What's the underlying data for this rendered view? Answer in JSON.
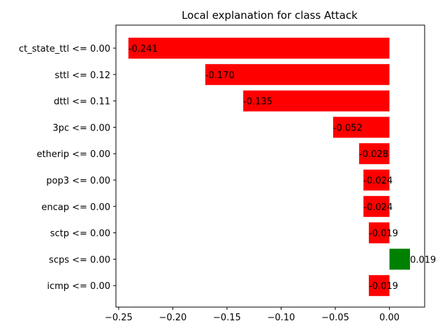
{
  "chart_data": {
    "type": "bar",
    "orientation": "horizontal",
    "title": "Local explanation for class Attack",
    "categories": [
      "ct_state_ttl <= 0.00",
      "sttl <= 0.12",
      "dttl <= 0.11",
      "3pc <= 0.00",
      "etherip <= 0.00",
      "pop3 <= 0.00",
      "encap <= 0.00",
      "sctp <= 0.00",
      "scps <= 0.00",
      "icmp <= 0.00"
    ],
    "values": [
      -0.241,
      -0.17,
      -0.135,
      -0.052,
      -0.028,
      -0.024,
      -0.024,
      -0.019,
      0.019,
      -0.019
    ],
    "value_labels": [
      "-0.241",
      "-0.170",
      "-0.135",
      "-0.052",
      "-0.028",
      "-0.024",
      "-0.024",
      "-0.019",
      "0.019",
      "-0.019"
    ],
    "xlim": [
      -0.2525,
      0.0325
    ],
    "xticks": [
      -0.25,
      -0.2,
      -0.15,
      -0.1,
      -0.05,
      0.0
    ],
    "xtick_labels": [
      "−0.25",
      "−0.20",
      "−0.15",
      "−0.10",
      "−0.05",
      "0.00"
    ],
    "colors": {
      "negative": "#ff0000",
      "positive": "#008000"
    },
    "grid": false,
    "legend": "none"
  }
}
